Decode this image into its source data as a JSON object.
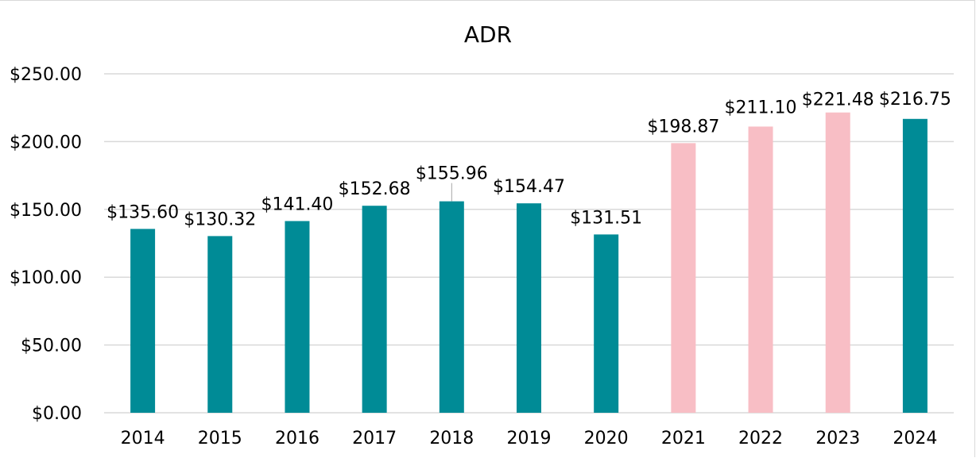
{
  "chart_data": {
    "type": "bar",
    "title": "ADR",
    "xlabel": "",
    "ylabel": "",
    "categories": [
      "2014",
      "2015",
      "2016",
      "2017",
      "2018",
      "2019",
      "2020",
      "2021",
      "2022",
      "2023",
      "2024"
    ],
    "values": [
      135.6,
      130.32,
      141.4,
      152.68,
      155.96,
      154.47,
      131.51,
      198.87,
      211.1,
      221.48,
      216.75
    ],
    "data_labels": [
      "$135.60",
      "$130.32",
      "$141.40",
      "$152.68",
      "$155.96",
      "$154.47",
      "$131.51",
      "$198.87",
      "$211.10",
      "$221.48",
      "$216.75"
    ],
    "bar_colors": [
      "#008b96",
      "#008b96",
      "#008b96",
      "#008b96",
      "#008b96",
      "#008b96",
      "#008b96",
      "#f8bec5",
      "#f8bec5",
      "#f8bec5",
      "#008b96"
    ],
    "ylim": [
      0,
      250
    ],
    "yticks": [
      0,
      50,
      100,
      150,
      200,
      250
    ],
    "ytick_labels": [
      "$0.00",
      "$50.00",
      "$100.00",
      "$150.00",
      "$200.00",
      "$250.00"
    ],
    "grid": true,
    "legend": "none"
  }
}
